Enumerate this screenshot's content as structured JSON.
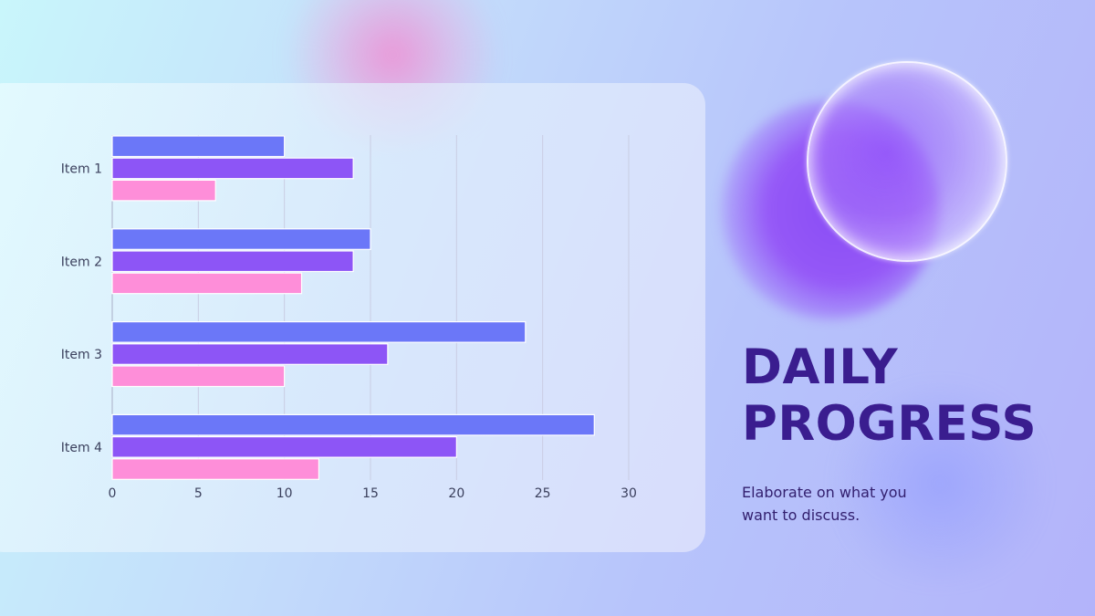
{
  "slide": {
    "title_line1": "DAILY",
    "title_line2": "PROGRESS",
    "subtitle_line1": "Elaborate on what you",
    "subtitle_line2": "want to discuss."
  },
  "colors": {
    "series_1": "#6b77f8",
    "series_2": "#8d55f6",
    "series_3": "#fe8ed9",
    "title": "#3a1d8f"
  },
  "chart_data": {
    "type": "bar",
    "orientation": "horizontal",
    "categories": [
      "Item 1",
      "Item 2",
      "Item 3",
      "Item 4"
    ],
    "series": [
      {
        "values": [
          10,
          15,
          24,
          28
        ]
      },
      {
        "values": [
          14,
          14,
          16,
          20
        ]
      },
      {
        "values": [
          6,
          11,
          10,
          12
        ]
      }
    ],
    "x_ticks": [
      "0",
      "5",
      "10",
      "15",
      "20",
      "25",
      "30"
    ],
    "xlim": [
      0,
      30
    ],
    "grid": "vertical",
    "legend": "none",
    "title": "",
    "xlabel": "",
    "ylabel": ""
  }
}
